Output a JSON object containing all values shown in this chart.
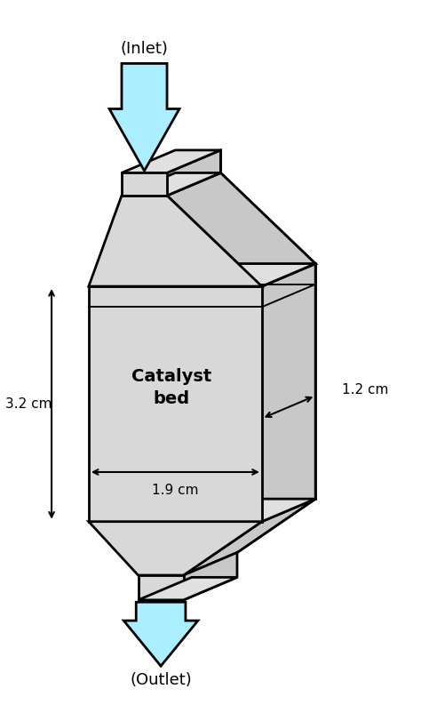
{
  "bg_color": "#ffffff",
  "face_color_main": "#d8d8d8",
  "face_color_side": "#c8c8c8",
  "face_color_top": "#e0e0e0",
  "edge_color": "#000000",
  "arrow_color": "#aaeeff",
  "title_inlet": "(Inlet)",
  "title_outlet": "(Outlet)",
  "label_catalyst": "Catalyst\nbed",
  "dim_32": "3.2 cm",
  "dim_19": "1.9 cm",
  "dim_12": "1.2 cm",
  "lw": 2.0
}
